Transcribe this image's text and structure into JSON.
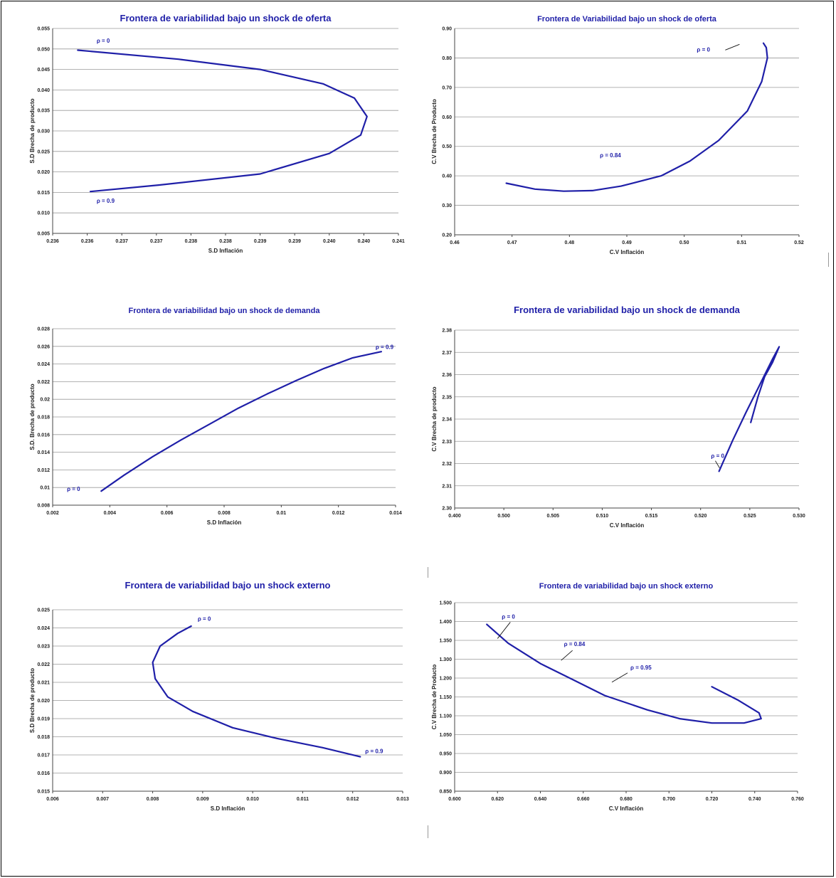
{
  "chart_data": [
    {
      "type": "line",
      "title": "Frontera de variabilidad bajo un shock de oferta",
      "xlabel": "S.D Inflación",
      "ylabel": "S.D Brecha de producto",
      "xlim": [
        0.2355,
        0.241
      ],
      "ylim": [
        0.005,
        0.055
      ],
      "xticks": [
        "0.236",
        "0.236",
        "0.237",
        "0.237",
        "0.238",
        "0.238",
        "0.239",
        "0.239",
        "0.240",
        "0.240",
        "0.241"
      ],
      "yticks": [
        "0.005",
        "0.010",
        "0.015",
        "0.020",
        "0.025",
        "0.030",
        "0.035",
        "0.040",
        "0.045",
        "0.050",
        "0.055"
      ],
      "series": [
        {
          "x": [
            0.2359,
            0.2375,
            0.2388,
            0.2398,
            0.2403,
            0.2405,
            0.2404,
            0.2399,
            0.2388,
            0.2372,
            0.2361
          ],
          "y": [
            0.0497,
            0.0475,
            0.045,
            0.0415,
            0.038,
            0.0335,
            0.029,
            0.0245,
            0.0195,
            0.0168,
            0.0152
          ]
        }
      ],
      "annotations": [
        {
          "text": "ρ = 0",
          "x": 0.2362,
          "y": 0.0515
        },
        {
          "text": "ρ = 0.9",
          "x": 0.2362,
          "y": 0.0125
        }
      ]
    },
    {
      "type": "line",
      "title": "Frontera de Variabilidad bajo un shock de oferta",
      "xlabel": "C.V Inflación",
      "ylabel": "C.V Brecha de Producto",
      "xlim": [
        0.46,
        0.52
      ],
      "ylim": [
        0.2,
        0.9
      ],
      "xticks": [
        "0.46",
        "0.47",
        "0.48",
        "0.49",
        "0.50",
        "0.51",
        "0.52"
      ],
      "yticks": [
        "0.20",
        "0.30",
        "0.40",
        "0.50",
        "0.60",
        "0.70",
        "0.80",
        "0.90"
      ],
      "series": [
        {
          "x": [
            0.469,
            0.474,
            0.479,
            0.484,
            0.489,
            0.496,
            0.501,
            0.506,
            0.511,
            0.5135,
            0.5145,
            0.5143,
            0.5138
          ],
          "y": [
            0.375,
            0.355,
            0.348,
            0.35,
            0.365,
            0.4,
            0.45,
            0.52,
            0.62,
            0.72,
            0.8,
            0.835,
            0.85
          ]
        }
      ],
      "annotations": [
        {
          "text": "ρ = 0",
          "x": 0.5022,
          "y": 0.822
        },
        {
          "text": "ρ = 0.84",
          "x": 0.4853,
          "y": 0.463
        }
      ]
    },
    {
      "type": "line",
      "title": "Frontera de variabilidad bajo un shock de demanda",
      "xlabel": "S.D Inflación",
      "ylabel": "S.D. Brecha de producto",
      "xlim": [
        0.002,
        0.014
      ],
      "ylim": [
        0.008,
        0.028
      ],
      "xticks": [
        "0.002",
        "0.004",
        "0.006",
        "0.008",
        "0.01",
        "0.012",
        "0.014"
      ],
      "yticks": [
        "0.008",
        "0.01",
        "0.012",
        "0.014",
        "0.016",
        "0.018",
        "0.02",
        "0.022",
        "0.024",
        "0.026",
        "0.028"
      ],
      "series": [
        {
          "x": [
            0.0037,
            0.0045,
            0.0055,
            0.0065,
            0.0075,
            0.0085,
            0.0095,
            0.0105,
            0.0115,
            0.0125,
            0.0135
          ],
          "y": [
            0.0096,
            0.0114,
            0.0135,
            0.0154,
            0.0172,
            0.019,
            0.0206,
            0.0221,
            0.0235,
            0.0247,
            0.0254
          ]
        }
      ],
      "annotations": [
        {
          "text": "ρ = 0",
          "x": 0.0025,
          "y": 0.0096
        },
        {
          "text": "ρ = 0.9",
          "x": 0.0133,
          "y": 0.0257
        }
      ]
    },
    {
      "type": "line",
      "title": "Frontera de variabilidad bajo un shock de demanda",
      "xlabel": "C.V Inflación",
      "ylabel": "C.V Brecha de producto",
      "xlim": [
        0.4,
        0.53
      ],
      "ylim": [
        2.3,
        2.38
      ],
      "xticks": [
        "0.400",
        "0.500",
        "0.505",
        "0.510",
        "0.515",
        "0.520",
        "0.525",
        "0.530"
      ],
      "yticks": [
        "2.30",
        "2.31",
        "2.32",
        "2.33",
        "2.34",
        "2.35",
        "2.36",
        "2.37",
        "2.38"
      ],
      "series": [
        {
          "x": [
            0.4998,
            0.505,
            0.51,
            0.515,
            0.52,
            0.5225,
            0.52,
            0.517,
            0.5145,
            0.5118
          ],
          "y": [
            2.3165,
            2.3305,
            2.343,
            2.355,
            2.367,
            2.3725,
            2.3655,
            2.359,
            2.35,
            2.3385
          ]
        }
      ],
      "annotations": [
        {
          "text": "ρ = 0",
          "x": 0.4968,
          "y": 2.3225
        }
      ]
    },
    {
      "type": "line",
      "title": "Frontera de variabilidad bajo un shock externo",
      "xlabel": "S.D Inflación",
      "ylabel": "S.D Brecha de producto",
      "xlim": [
        0.006,
        0.013
      ],
      "ylim": [
        0.015,
        0.025
      ],
      "xticks": [
        "0.006",
        "0.007",
        "0.008",
        "0.009",
        "0.010",
        "0.011",
        "0.012",
        "0.013"
      ],
      "yticks": [
        "0.015",
        "0.016",
        "0.017",
        "0.018",
        "0.019",
        "0.020",
        "0.021",
        "0.022",
        "0.023",
        "0.024",
        "0.025"
      ],
      "series": [
        {
          "x": [
            0.00877,
            0.0085,
            0.00815,
            0.008,
            0.00805,
            0.0083,
            0.0088,
            0.0096,
            0.0105,
            0.0114,
            0.01215
          ],
          "y": [
            0.0241,
            0.0237,
            0.023,
            0.0221,
            0.0212,
            0.0202,
            0.0194,
            0.0185,
            0.0179,
            0.0174,
            0.0169
          ]
        }
      ],
      "annotations": [
        {
          "text": "ρ = 0",
          "x": 0.0089,
          "y": 0.0244
        },
        {
          "text": "ρ = 0.9",
          "x": 0.01225,
          "y": 0.0171
        }
      ]
    },
    {
      "type": "line",
      "title": "Frontera de variabilidad bajo un shock externo",
      "xlabel": "C.V Inflación",
      "ylabel": "C.V Brecha de Producto",
      "xlim": [
        0.6,
        0.76
      ],
      "ylim": [
        0.85,
        1.5
      ],
      "xticks": [
        "0.600",
        "0.620",
        "0.640",
        "0.660",
        "0.680",
        "0.700",
        "0.720",
        "0.740",
        "0.760"
      ],
      "yticks": [
        "0.850",
        "0.900",
        "0.950",
        "1.050",
        "1.100",
        "1.150",
        "1.200",
        "1.300",
        "1.350",
        "1.400",
        "1.500"
      ],
      "series": [
        {
          "x": [
            0.615,
            0.625,
            0.64,
            0.655,
            0.67,
            0.69,
            0.705,
            0.72,
            0.735,
            0.743,
            0.742,
            0.732,
            0.72
          ],
          "y": [
            1.425,
            1.36,
            1.29,
            1.235,
            1.18,
            1.13,
            1.1,
            1.085,
            1.085,
            1.1,
            1.12,
            1.165,
            1.21
          ]
        }
      ],
      "annotations": [
        {
          "text": "ρ = 0",
          "x": 0.622,
          "y": 1.445
        },
        {
          "text": "ρ = 0.84",
          "x": 0.651,
          "y": 1.35
        },
        {
          "text": "ρ = 0.95",
          "x": 0.682,
          "y": 1.27
        }
      ]
    }
  ]
}
